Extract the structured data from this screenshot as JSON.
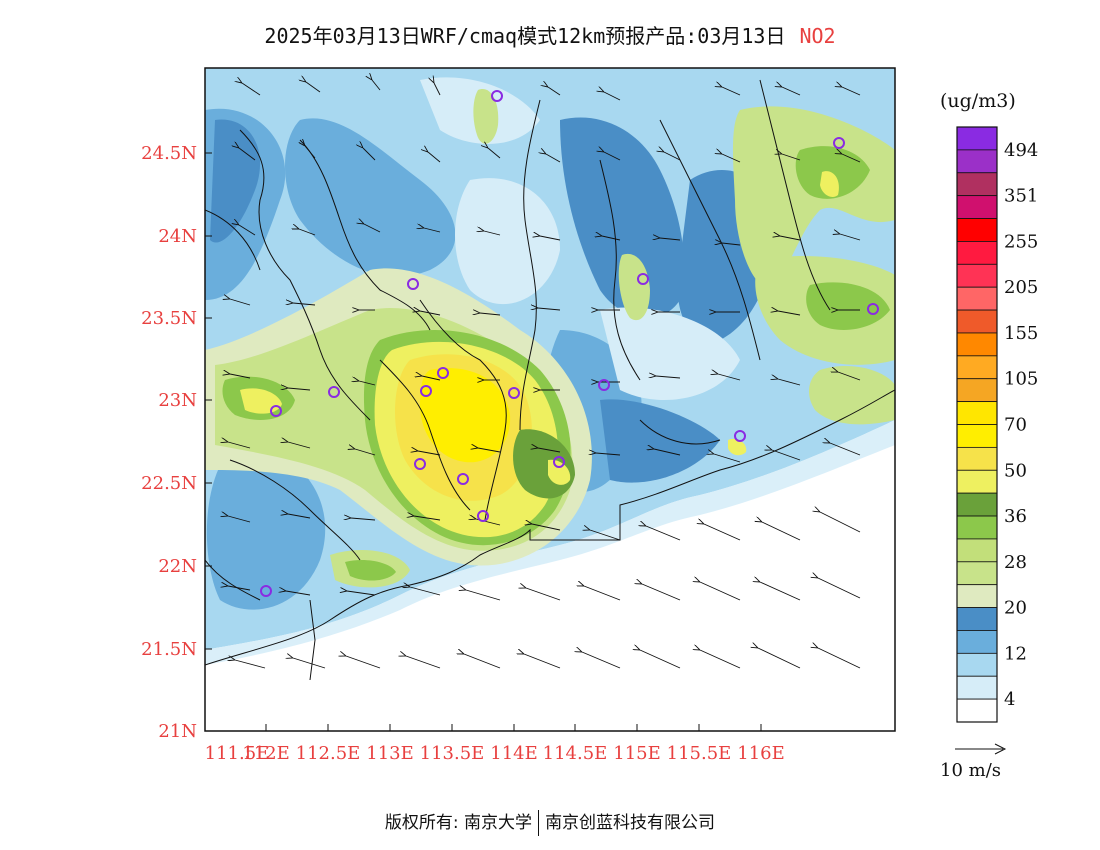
{
  "title": {
    "main": "2025年03月13日WRF/cmaq模式12km预报产品:03月13日",
    "species": "NO2"
  },
  "colorbar": {
    "unit": "(ug/m3)",
    "labels": [
      "494",
      "351",
      "255",
      "205",
      "155",
      "105",
      "70",
      "50",
      "36",
      "28",
      "20",
      "12",
      "4"
    ],
    "colors_top_to_bottom": [
      "#8a2be2",
      "#9b30c8",
      "#b03060",
      "#d0106e",
      "#ff0000",
      "#ff1a40",
      "#ff3355",
      "#ff6666",
      "#ef5a2a",
      "#ff8800",
      "#ffaa22",
      "#f5a623",
      "#ffe600",
      "#ffee00",
      "#f6e24a",
      "#eef060",
      "#6aa13a",
      "#8cc84b",
      "#c2df7a",
      "#c8e38a",
      "#dfeac0",
      "#4a8ec6",
      "#6aaedc",
      "#a8d8f0",
      "#d6edf8",
      "#ffffff"
    ]
  },
  "axes": {
    "lat_labels": [
      "24.5N",
      "24N",
      "23.5N",
      "23N",
      "22.5N",
      "22N",
      "21.5N",
      "21N"
    ],
    "lon_labels": [
      "111.5E",
      "112E",
      "112.5E",
      "113E",
      "113.5E",
      "114E",
      "114.5E",
      "115E",
      "115.5E",
      "116E"
    ]
  },
  "wind_reference": {
    "label": "10 m/s"
  },
  "footer": {
    "copyright": "版权所有: 南京大学",
    "company": "南京创蓝科技有限公司"
  },
  "palette": {
    "sea": "#ffffff",
    "low": "#d6edf8",
    "mid_low": "#a8d8f0",
    "mid": "#6aaedc",
    "blue_dark": "#4a8ec6",
    "pale_green": "#dfeac0",
    "green_light": "#c8e38a",
    "green": "#8cc84b",
    "green_dark": "#6aa13a",
    "yellow_light": "#eef060",
    "yellow": "#ffee00",
    "station_ring": "#8a2be2",
    "tick_red": "#e8403f"
  },
  "legend_icons": [
    "wind-arrow-icon",
    "station-ring-icon"
  ]
}
